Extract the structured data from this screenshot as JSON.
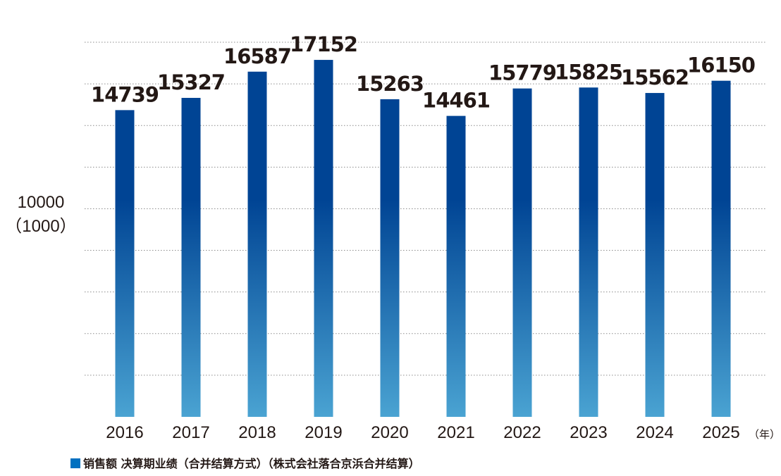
{
  "chart_data": {
    "type": "bar",
    "categories": [
      "2016",
      "2017",
      "2018",
      "2019",
      "2020",
      "2021",
      "2022",
      "2023",
      "2024",
      "2025"
    ],
    "series": [
      {
        "name": "销售额 决算期业绩（合并结算方式）（株式会社落合京浜合并结算）",
        "values": [
          14739,
          15327,
          16587,
          17152,
          15263,
          14461,
          15779,
          15825,
          15562,
          16150
        ]
      }
    ],
    "title": "",
    "xlabel": "（年）",
    "ylabel": "10000（1000）",
    "ylabel_lines": [
      "10000",
      "（1000）"
    ],
    "ylim": [
      0,
      18000
    ],
    "grid": true,
    "legend_position": "bottom-left",
    "colors": {
      "bar_top": "#004494",
      "bar_bottom": "#4aa3d2",
      "legend_marker": "#0070c0",
      "text": "#231815",
      "grid": "#8c8c8c"
    }
  }
}
